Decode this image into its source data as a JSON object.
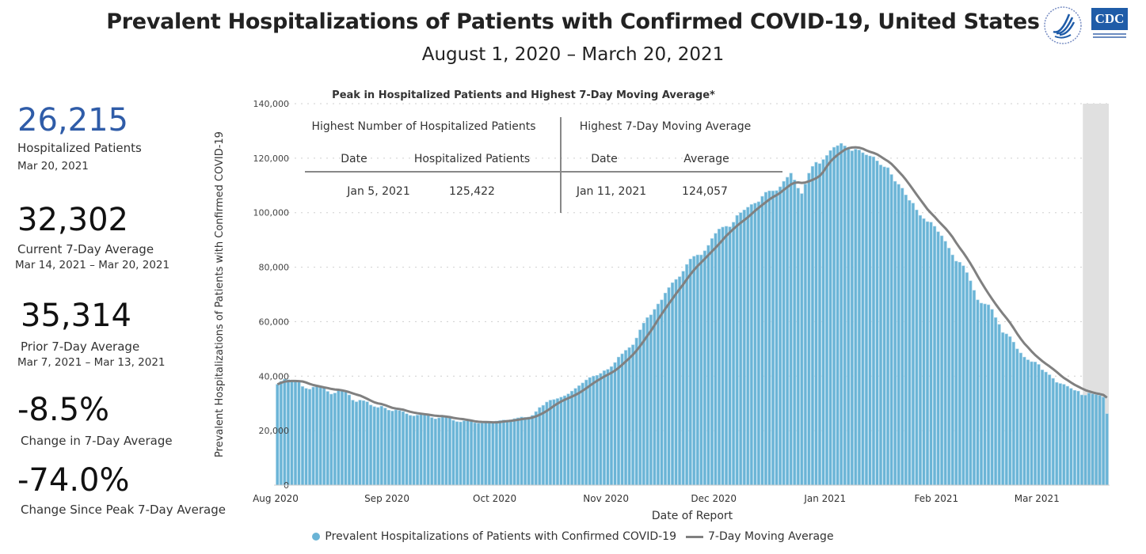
{
  "header": {
    "title": "Prevalent Hospitalizations of Patients with Confirmed COVID-19, United States",
    "subtitle": "August 1, 2020 – March 20, 2021",
    "logos": [
      "HHS seal",
      "CDC"
    ]
  },
  "stats": [
    {
      "value": "26,215",
      "label": "Hospitalized Patients",
      "date": "Mar 20, 2021",
      "color": "#2f5ca8"
    },
    {
      "value": "32,302",
      "label": "Current 7-Day Average",
      "date": "Mar 14, 2021 – Mar 20, 2021"
    },
    {
      "value": "35,314",
      "label": "Prior 7-Day Average",
      "date": "Mar 7, 2021 – Mar 13, 2021"
    },
    {
      "value": "-8.5%",
      "label": "Change in 7-Day Average"
    },
    {
      "value": "-74.0%",
      "label": "Change Since Peak 7-Day Average"
    }
  ],
  "peak_table": {
    "title": "Peak in Hospitalized Patients and Highest 7-Day Moving Average*",
    "left_header": "Highest Number of Hospitalized Patients",
    "right_header": "Highest 7-Day Moving Average",
    "left_cols": [
      "Date",
      "Hospitalized Patients"
    ],
    "right_cols": [
      "Date",
      "Average"
    ],
    "left_row": [
      "Jan 5, 2021",
      "125,422"
    ],
    "right_row": [
      "Jan 11, 2021",
      "124,057"
    ]
  },
  "chart_data": {
    "type": "bar",
    "xlabel": "Date of Report",
    "ylabel": "Prevalent Hospitalizations of Patients with Confirmed COVID-19",
    "x_start": "2020-08-01",
    "x_end": "2021-03-20",
    "x_ticks": [
      "Aug 2020",
      "Sep 2020",
      "Oct 2020",
      "Nov 2020",
      "Dec 2020",
      "Jan 2021",
      "Feb 2021",
      "Mar 2021"
    ],
    "y_ticks": [
      "0",
      "20,000",
      "40,000",
      "60,000",
      "80,000",
      "100,000",
      "120,000",
      "140,000"
    ],
    "ylim": [
      0,
      140000
    ],
    "grid": "horizontal dotted",
    "shaded_range": [
      "2021-03-14",
      "2021-03-20"
    ],
    "legend_position": "bottom",
    "series": [
      {
        "name": "Prevalent Hospitalizations of Patients with Confirmed COVID-19",
        "kind": "bar",
        "color": "#6ab4d6",
        "values": [
          37000,
          38100,
          38900,
          38700,
          38400,
          38200,
          37800,
          36200,
          35500,
          35200,
          36000,
          36300,
          36200,
          35800,
          34400,
          33400,
          33800,
          35100,
          34800,
          34200,
          33100,
          31200,
          30600,
          31200,
          31000,
          30600,
          29400,
          28800,
          28500,
          29000,
          28300,
          27500,
          27200,
          27600,
          27400,
          27000,
          26200,
          25600,
          25400,
          25700,
          26300,
          26100,
          25800,
          24800,
          24300,
          24700,
          25300,
          25100,
          24800,
          23800,
          23300,
          23200,
          23600,
          23800,
          23400,
          22900,
          22700,
          22800,
          23100,
          23200,
          23300,
          23500,
          23700,
          23900,
          23800,
          24000,
          24400,
          24700,
          25000,
          24900,
          25000,
          25600,
          27000,
          28500,
          29300,
          30500,
          31200,
          31400,
          31800,
          32300,
          32800,
          33500,
          34500,
          35500,
          36500,
          37500,
          38600,
          39500,
          40000,
          40300,
          41000,
          42000,
          42500,
          43500,
          45000,
          47000,
          48200,
          49500,
          50500,
          51500,
          54000,
          57000,
          59500,
          61500,
          62500,
          64500,
          66500,
          68000,
          70500,
          72500,
          74300,
          75500,
          76500,
          78500,
          81000,
          83000,
          84000,
          84500,
          84500,
          86000,
          88000,
          90500,
          92400,
          94000,
          94700,
          95000,
          94800,
          96500,
          99000,
          100000,
          101000,
          102000,
          103000,
          103500,
          104000,
          106000,
          107500,
          108000,
          108000,
          108100,
          109500,
          111500,
          113000,
          114500,
          112000,
          109000,
          107000,
          110500,
          114500,
          117000,
          118500,
          118000,
          119500,
          121000,
          122800,
          124000,
          124600,
          125422,
          124500,
          123400,
          122700,
          123300,
          123000,
          122000,
          121200,
          120800,
          120500,
          119000,
          117500,
          116800,
          116500,
          114000,
          111500,
          110400,
          109000,
          106500,
          104500,
          103500,
          101000,
          99000,
          97800,
          96700,
          96500,
          95000,
          93000,
          91500,
          89500,
          87000,
          84500,
          82200,
          81800,
          80500,
          78000,
          75000,
          71500,
          68000,
          66800,
          66500,
          66200,
          64500,
          61500,
          59000,
          56000,
          55500,
          54500,
          52500,
          50000,
          48500,
          47000,
          46000,
          45300,
          45200,
          44300,
          42300,
          41500,
          40500,
          39200,
          37700,
          37300,
          37000,
          36300,
          35500,
          34800,
          34500,
          33100,
          33000,
          33800,
          33500,
          33200,
          32900,
          32300,
          26215
        ]
      },
      {
        "name": "7-Day Moving Average",
        "kind": "line",
        "color": "#808080"
      }
    ]
  }
}
